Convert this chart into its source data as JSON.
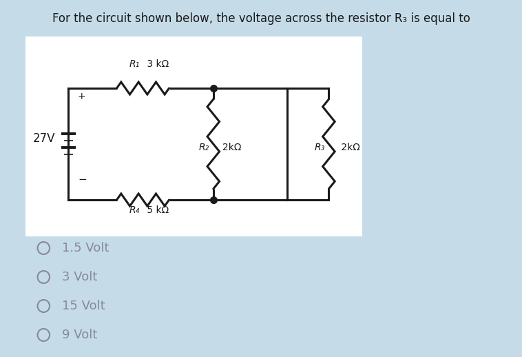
{
  "title": "For the circuit shown below, the voltage across the resistor R₃ is equal to",
  "bg_color": "#c5dce8",
  "options": [
    "1.5 Volt",
    "3 Volt",
    "15 Volt",
    "9 Volt"
  ],
  "voltage_label": "27V",
  "r1_label_main": "R₁",
  "r1_label_val": " 3 kΩ",
  "r2_label_main": "R₂",
  "r2_label_val": "2kΩ",
  "r3_label_main": "R₃",
  "r3_label_val": " 2kΩ",
  "r4_label_main": "R₄",
  "r4_label_val": " 5 kΩ",
  "line_color": "#1a1a1a",
  "text_color": "#1a1a1a",
  "option_color": "#888899"
}
